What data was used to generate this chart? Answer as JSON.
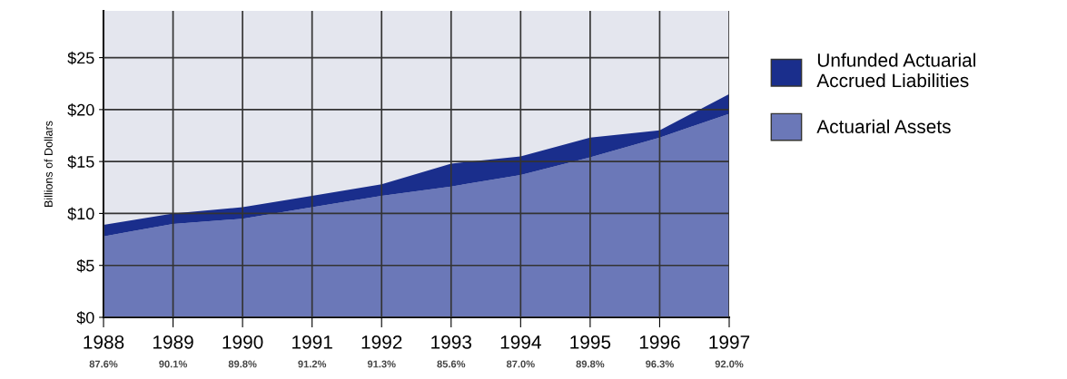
{
  "chart_data": {
    "type": "area",
    "stacked": true,
    "ylabel": "Billions of Dollars",
    "categories": [
      "1988",
      "1989",
      "1990",
      "1991",
      "1992",
      "1993",
      "1994",
      "1995",
      "1996",
      "1997"
    ],
    "series": [
      {
        "name": "Actuarial Assets",
        "color": "#6b78b8",
        "values": [
          7.8,
          9.0,
          9.5,
          10.6,
          11.7,
          12.6,
          13.7,
          15.4,
          17.3,
          19.6
        ]
      },
      {
        "name": "Unfunded Actuarial\nAccrued Liabilities",
        "color": "#1a2e8c",
        "values": [
          1.1,
          1.0,
          1.1,
          1.1,
          1.1,
          2.2,
          1.8,
          1.9,
          0.7,
          1.9
        ]
      }
    ],
    "ylim": [
      0,
      29.5
    ],
    "yticks": [
      {
        "value": 0,
        "label": "$0"
      },
      {
        "value": 5,
        "label": "$5"
      },
      {
        "value": 10,
        "label": "$10"
      },
      {
        "value": 15,
        "label": "$15"
      },
      {
        "value": 20,
        "label": "$20"
      },
      {
        "value": 25,
        "label": "$25"
      }
    ],
    "grid": true,
    "legend": "right",
    "annotations": [
      "87.6%",
      "90.1%",
      "89.8%",
      "91.2%",
      "91.3%",
      "85.6%",
      "87.0%",
      "89.8%",
      "96.3%",
      "92.0%"
    ]
  }
}
